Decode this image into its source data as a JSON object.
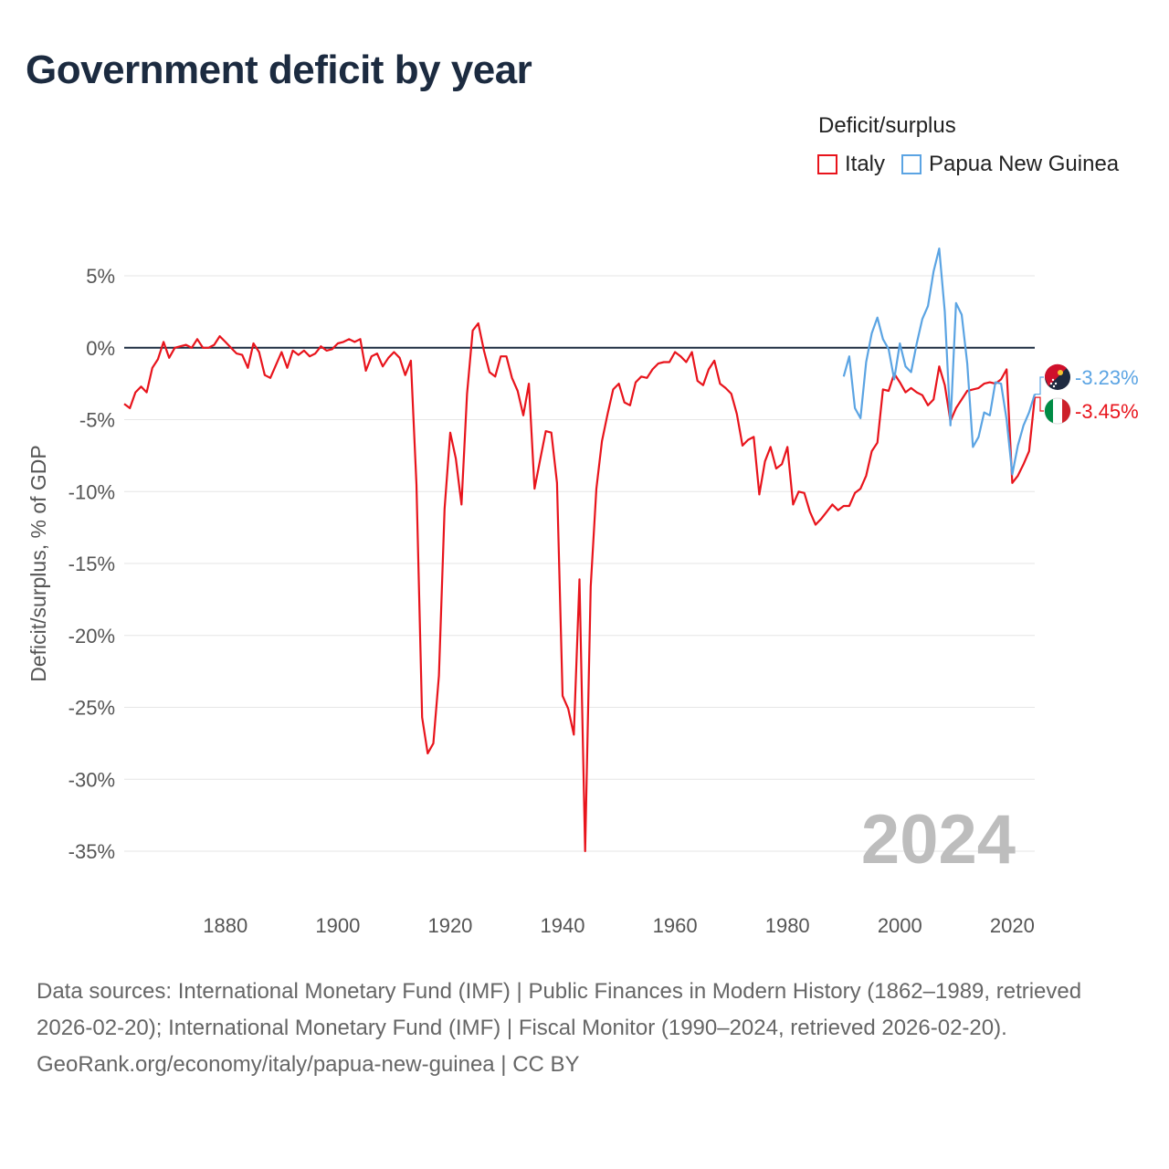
{
  "title": "Government deficit by year",
  "legend": {
    "title": "Deficit/surplus",
    "items": [
      {
        "label": "Italy",
        "color": "#e8141c"
      },
      {
        "label": "Papua New Guinea",
        "color": "#5ba4e3"
      }
    ]
  },
  "footer": {
    "sources": "Data sources: International Monetary Fund (IMF) | Public Finances in Modern History (1862–1989, retrieved 2026-02-20); International Monetary Fund (IMF) | Fiscal Monitor (1990–2024, retrieved 2026-02-20).",
    "credit": "GeoRank.org/economy/italy/papua-new-guinea | CC BY"
  },
  "chart_data": {
    "type": "line",
    "ylabel": "Deficit/surplus, % of GDP",
    "xlabel": "",
    "xlim": [
      1862,
      2024
    ],
    "ylim": [
      -35,
      5
    ],
    "year_label": "2024",
    "x_ticks": [
      1880,
      1900,
      1920,
      1940,
      1960,
      1980,
      2000,
      2020
    ],
    "y_ticks": [
      5,
      0,
      -5,
      -10,
      -15,
      -20,
      -25,
      -30,
      -35
    ],
    "y_tick_labels": [
      "5%",
      "0%",
      "-5%",
      "-10%",
      "-15%",
      "-20%",
      "-25%",
      "-30%",
      "-35%"
    ],
    "series": [
      {
        "name": "Italy",
        "color": "#e8141c",
        "end_label": "-3.45%",
        "x": [
          1862,
          1863,
          1864,
          1865,
          1866,
          1867,
          1868,
          1869,
          1870,
          1871,
          1872,
          1873,
          1874,
          1875,
          1876,
          1877,
          1878,
          1879,
          1880,
          1881,
          1882,
          1883,
          1884,
          1885,
          1886,
          1887,
          1888,
          1889,
          1890,
          1891,
          1892,
          1893,
          1894,
          1895,
          1896,
          1897,
          1898,
          1899,
          1900,
          1901,
          1902,
          1903,
          1904,
          1905,
          1906,
          1907,
          1908,
          1909,
          1910,
          1911,
          1912,
          1913,
          1914,
          1915,
          1916,
          1917,
          1918,
          1919,
          1920,
          1921,
          1922,
          1923,
          1924,
          1925,
          1926,
          1927,
          1928,
          1929,
          1930,
          1931,
          1932,
          1933,
          1934,
          1935,
          1936,
          1937,
          1938,
          1939,
          1940,
          1941,
          1942,
          1943,
          1944,
          1945,
          1946,
          1947,
          1948,
          1949,
          1950,
          1951,
          1952,
          1953,
          1954,
          1955,
          1956,
          1957,
          1958,
          1959,
          1960,
          1961,
          1962,
          1963,
          1964,
          1965,
          1966,
          1967,
          1968,
          1969,
          1970,
          1971,
          1972,
          1973,
          1974,
          1975,
          1976,
          1977,
          1978,
          1979,
          1980,
          1981,
          1982,
          1983,
          1984,
          1985,
          1986,
          1987,
          1988,
          1989,
          1990,
          1991,
          1992,
          1993,
          1994,
          1995,
          1996,
          1997,
          1998,
          1999,
          2000,
          2001,
          2002,
          2003,
          2004,
          2005,
          2006,
          2007,
          2008,
          2009,
          2010,
          2011,
          2012,
          2013,
          2014,
          2015,
          2016,
          2017,
          2018,
          2019,
          2020,
          2021,
          2022,
          2023,
          2024
        ],
        "y": [
          -3.9,
          -4.2,
          -3.1,
          -2.7,
          -3.1,
          -1.4,
          -0.8,
          0.4,
          -0.7,
          0.0,
          0.1,
          0.2,
          0.0,
          0.6,
          0.0,
          0.0,
          0.2,
          0.8,
          0.4,
          0.0,
          -0.4,
          -0.5,
          -1.4,
          0.3,
          -0.3,
          -1.9,
          -2.1,
          -1.2,
          -0.3,
          -1.4,
          -0.2,
          -0.5,
          -0.2,
          -0.6,
          -0.4,
          0.1,
          -0.2,
          -0.1,
          0.3,
          0.4,
          0.6,
          0.4,
          0.6,
          -1.6,
          -0.6,
          -0.4,
          -1.3,
          -0.7,
          -0.3,
          -0.7,
          -1.9,
          -0.9,
          -9.5,
          -25.7,
          -28.2,
          -27.5,
          -22.8,
          -11.2,
          -5.9,
          -7.7,
          -10.9,
          -3.2,
          1.2,
          1.7,
          -0.2,
          -1.7,
          -2.0,
          -0.6,
          -0.6,
          -2.1,
          -3.0,
          -4.7,
          -2.5,
          -9.8,
          -7.8,
          -5.8,
          -5.9,
          -9.4,
          -24.2,
          -25.1,
          -26.9,
          -16.1,
          -35.0,
          -16.6,
          -9.8,
          -6.5,
          -4.6,
          -2.9,
          -2.5,
          -3.8,
          -4.0,
          -2.4,
          -2.0,
          -2.1,
          -1.5,
          -1.1,
          -1.0,
          -1.0,
          -0.3,
          -0.6,
          -1.0,
          -0.3,
          -2.3,
          -2.6,
          -1.5,
          -0.9,
          -2.5,
          -2.8,
          -3.2,
          -4.6,
          -6.8,
          -6.4,
          -6.2,
          -10.2,
          -7.9,
          -6.9,
          -8.4,
          -8.1,
          -6.9,
          -10.9,
          -10.0,
          -10.1,
          -11.4,
          -12.3,
          -11.9,
          -11.4,
          -10.9,
          -11.3,
          -11.0,
          -11.0,
          -10.1,
          -9.8,
          -8.9,
          -7.2,
          -6.6,
          -2.9,
          -3.0,
          -1.8,
          -2.4,
          -3.1,
          -2.8,
          -3.1,
          -3.3,
          -4.0,
          -3.6,
          -1.3,
          -2.6,
          -5.1,
          -4.2,
          -3.6,
          -3.0,
          -2.9,
          -2.8,
          -2.5,
          -2.4,
          -2.5,
          -2.2,
          -1.5,
          -9.4,
          -8.9,
          -8.1,
          -7.2,
          -3.45
        ]
      },
      {
        "name": "Papua New Guinea",
        "color": "#5ba4e3",
        "end_label": "-3.23%",
        "x": [
          1990,
          1991,
          1992,
          1993,
          1994,
          1995,
          1996,
          1997,
          1998,
          1999,
          2000,
          2001,
          2002,
          2003,
          2004,
          2005,
          2006,
          2007,
          2008,
          2009,
          2010,
          2011,
          2012,
          2013,
          2014,
          2015,
          2016,
          2017,
          2018,
          2019,
          2020,
          2021,
          2022,
          2023,
          2024
        ],
        "y": [
          -2.0,
          -0.6,
          -4.2,
          -4.9,
          -1.0,
          1.0,
          2.1,
          0.6,
          -0.1,
          -2.2,
          0.3,
          -1.3,
          -1.7,
          0.3,
          2.0,
          2.9,
          5.3,
          6.9,
          2.5,
          -5.4,
          3.1,
          2.3,
          -1.1,
          -6.9,
          -6.2,
          -4.5,
          -4.7,
          -2.4,
          -2.5,
          -5.0,
          -8.8,
          -6.8,
          -5.4,
          -4.5,
          -3.23
        ]
      }
    ]
  }
}
